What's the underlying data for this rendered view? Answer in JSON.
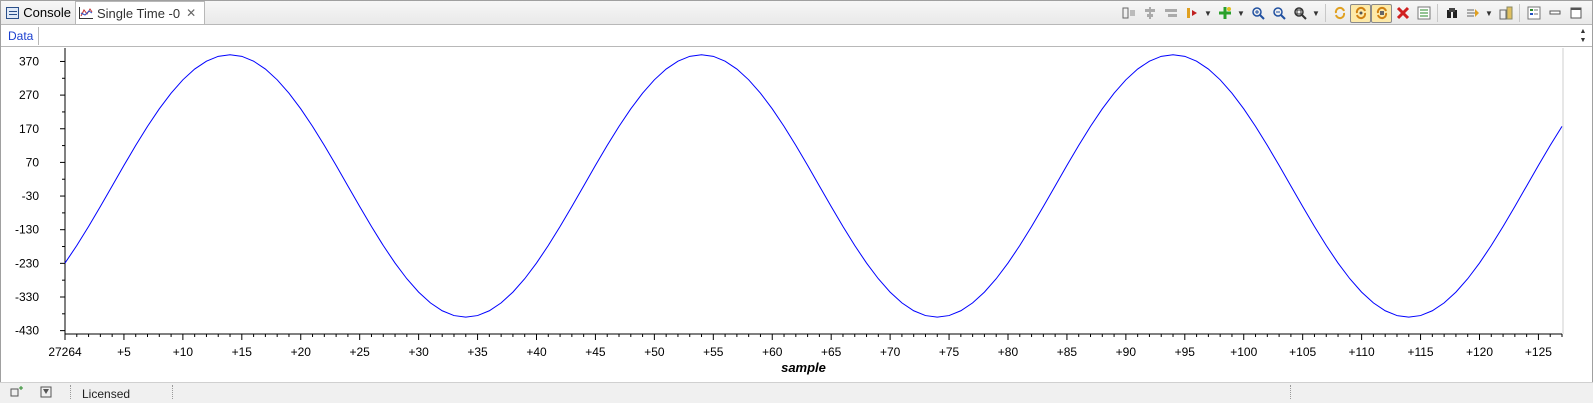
{
  "tabs": [
    {
      "label": "Console",
      "icon": "console-icon"
    },
    {
      "label": "Single Time -0",
      "icon": "graph-icon",
      "close": "✕"
    }
  ],
  "toolbar_icons": [
    "align-left-icon",
    "align-center-icon",
    "align-right-icon",
    "marker-icon",
    "add-measure-icon",
    "zoom-in-icon",
    "zoom-out-icon",
    "zoom-fit-icon",
    "refresh-icon",
    "continuous-refresh-icon",
    "auto-scale-icon",
    "clear-icon",
    "properties-icon",
    "pin-icon",
    "export-icon",
    "save-icon",
    "legend-icon",
    "minimize-icon",
    "maximize-icon"
  ],
  "data_tab": "Data",
  "status": {
    "text": "Licensed"
  },
  "chart_data": {
    "type": "line",
    "xlabel": "sample",
    "x_start_label": "27264",
    "x_tick_labels": [
      "+5",
      "+10",
      "+15",
      "+20",
      "+25",
      "+30",
      "+35",
      "+40",
      "+45",
      "+50",
      "+55",
      "+60",
      "+65",
      "+70",
      "+75",
      "+80",
      "+85",
      "+90",
      "+95",
      "+100",
      "+105",
      "+110",
      "+115",
      "+120",
      "+125"
    ],
    "y_tick_labels": [
      "370",
      "270",
      "170",
      "70",
      "-30",
      "-130",
      "-230",
      "-330",
      "-430"
    ],
    "xlim": [
      0,
      127
    ],
    "ylim": [
      -440,
      410
    ],
    "series": [
      {
        "color": "#0000ff",
        "amplitude": 390,
        "period": 40,
        "peak_at": 14,
        "samples": 128
      }
    ]
  }
}
